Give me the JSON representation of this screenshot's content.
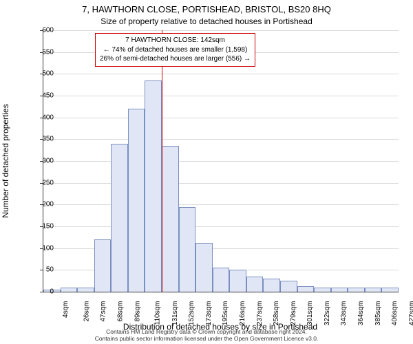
{
  "title_main": "7, HAWTHORN CLOSE, PORTISHEAD, BRISTOL, BS20 8HQ",
  "title_sub": "Size of property relative to detached houses in Portishead",
  "ylabel": "Number of detached properties",
  "xlabel": "Distribution of detached houses by size in Portishead",
  "chart": {
    "type": "histogram",
    "ylim": [
      0,
      600
    ],
    "ytick_step": 50,
    "x_categories": [
      "4sqm",
      "26sqm",
      "47sqm",
      "68sqm",
      "89sqm",
      "110sqm",
      "131sqm",
      "152sqm",
      "173sqm",
      "195sqm",
      "216sqm",
      "237sqm",
      "258sqm",
      "279sqm",
      "301sqm",
      "322sqm",
      "343sqm",
      "364sqm",
      "385sqm",
      "406sqm",
      "427sqm"
    ],
    "values": [
      5,
      10,
      10,
      120,
      340,
      420,
      485,
      335,
      195,
      112,
      55,
      50,
      35,
      30,
      25,
      12,
      10,
      10,
      10,
      10,
      10
    ],
    "bar_fill": "#e0e6f6",
    "bar_stroke": "#7a8fbf",
    "background_color": "#ffffff",
    "grid_color": "#d9d9d9",
    "axis_color": "#333333",
    "reference_line": {
      "after_category_index": 6,
      "color": "#cc0000"
    },
    "annotation_box": {
      "line1": "7 HAWTHORN CLOSE: 142sqm",
      "line2": "← 74% of detached houses are smaller (1,598)",
      "line3": "26% of semi-detached houses are larger (556) →",
      "border_color": "#cc0000"
    }
  },
  "footer_line1": "Contains HM Land Registry data © Crown copyright and database right 2024.",
  "footer_line2": "Contains public sector information licensed under the Open Government Licence v3.0."
}
